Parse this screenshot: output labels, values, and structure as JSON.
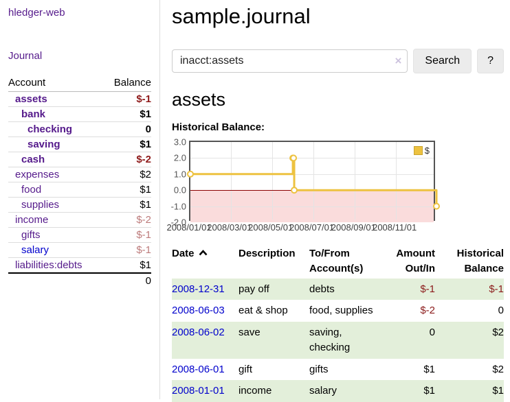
{
  "sidebar": {
    "app_title": "hledger-web",
    "journal_label": "Journal",
    "accounts_table": {
      "headers": {
        "account": "Account",
        "balance": "Balance"
      },
      "rows": [
        {
          "label": "assets",
          "depth": 1,
          "bold": true,
          "link_style": "purple",
          "balance": "$-1",
          "balance_style": "neg-strong"
        },
        {
          "label": "bank",
          "depth": 2,
          "bold": true,
          "link_style": "purple",
          "balance": "$1",
          "balance_style": "normal"
        },
        {
          "label": "checking",
          "depth": 3,
          "bold": true,
          "link_style": "purple",
          "balance": "0",
          "balance_style": "normal"
        },
        {
          "label": "saving",
          "depth": 3,
          "bold": true,
          "link_style": "purple",
          "balance": "$1",
          "balance_style": "normal"
        },
        {
          "label": "cash",
          "depth": 2,
          "bold": true,
          "link_style": "purple",
          "balance": "$-2",
          "balance_style": "neg-strong"
        },
        {
          "label": "expenses",
          "depth": 1,
          "bold": false,
          "link_style": "purple",
          "balance": "$2",
          "balance_style": "normal"
        },
        {
          "label": "food",
          "depth": 2,
          "bold": false,
          "link_style": "purple",
          "balance": "$1",
          "balance_style": "normal"
        },
        {
          "label": "supplies",
          "depth": 2,
          "bold": false,
          "link_style": "purple",
          "balance": "$1",
          "balance_style": "normal"
        },
        {
          "label": "income",
          "depth": 1,
          "bold": false,
          "link_style": "purple",
          "balance": "$-2",
          "balance_style": "neg-soft"
        },
        {
          "label": "gifts",
          "depth": 2,
          "bold": false,
          "link_style": "purple",
          "balance": "$-1",
          "balance_style": "neg-soft"
        },
        {
          "label": "salary",
          "depth": 2,
          "bold": false,
          "link_style": "blue",
          "balance": "$-1",
          "balance_style": "neg-soft"
        },
        {
          "label": "liabilities:debts",
          "depth": 1,
          "bold": false,
          "link_style": "purple",
          "balance": "$1",
          "balance_style": "normal"
        }
      ],
      "total": "0"
    }
  },
  "main": {
    "title": "sample.journal",
    "search": {
      "value": "inacct:assets",
      "clear_icon": "×",
      "search_button_label": "Search",
      "help_button_label": "?"
    },
    "account_heading": "assets",
    "chart_heading": "Historical Balance:",
    "register": {
      "headers": {
        "date": "Date",
        "description": "Description",
        "accounts": "To/From Account(s)",
        "amount": "Amount Out/In",
        "balance": "Historical Balance"
      },
      "rows": [
        {
          "date": "2008-12-31",
          "description": "pay off",
          "accounts": "debts",
          "amount": "$-1",
          "amount_style": "neg",
          "balance": "$-1",
          "balance_style": "neg",
          "striped": true
        },
        {
          "date": "2008-06-03",
          "description": "eat & shop",
          "accounts": "food, supplies",
          "amount": "$-2",
          "amount_style": "neg",
          "balance": "0",
          "balance_style": "normal",
          "striped": false
        },
        {
          "date": "2008-06-02",
          "description": "save",
          "accounts": "saving, checking",
          "amount": "0",
          "amount_style": "normal",
          "balance": "$2",
          "balance_style": "normal",
          "striped": true
        },
        {
          "date": "2008-06-01",
          "description": "gift",
          "accounts": "gifts",
          "amount": "$1",
          "amount_style": "normal",
          "balance": "$2",
          "balance_style": "normal",
          "striped": false
        },
        {
          "date": "2008-01-01",
          "description": "income",
          "accounts": "salary",
          "amount": "$1",
          "amount_style": "normal",
          "balance": "$1",
          "balance_style": "normal",
          "striped": true
        }
      ]
    }
  },
  "chart_data": {
    "type": "line",
    "title": "Historical Balance:",
    "series": [
      {
        "name": "$",
        "color": "#edc240",
        "steps": true,
        "points": [
          [
            "2008-01-01",
            1.0
          ],
          [
            "2008-06-01",
            2.0
          ],
          [
            "2008-06-02",
            2.0
          ],
          [
            "2008-06-03",
            0.0
          ],
          [
            "2008-12-31",
            -1.0
          ]
        ]
      }
    ],
    "x_range": [
      "2008-01-01",
      "2008-12-31"
    ],
    "y_range": [
      -2.0,
      3.0
    ],
    "x_ticks": [
      "2008/01/01",
      "2008/03/01",
      "2008/05/01",
      "2008/07/01",
      "2008/09/01",
      "2008/11/01"
    ],
    "y_ticks": [
      3.0,
      2.0,
      1.0,
      0.0,
      -1.0,
      -2.0
    ],
    "legend": {
      "label": "$",
      "position": "top-right"
    },
    "grid": true,
    "zero_line_color": "#8b0000",
    "negative_region_color": "#fadcdc"
  },
  "colors": {
    "link_purple": "#551a8b",
    "link_blue": "#0000cc",
    "negative_strong": "#8f1b1b",
    "negative_soft": "#bd7b7b",
    "register_negative": "#8b1a1a",
    "stripe_green": "#e3efda",
    "chart_line": "#edc240"
  }
}
